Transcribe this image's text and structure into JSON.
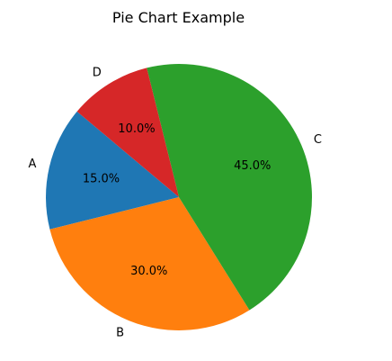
{
  "chart_data": {
    "type": "pie",
    "title": "Pie Chart Example",
    "labels": [
      "A",
      "B",
      "C",
      "D"
    ],
    "values": [
      15,
      30,
      45,
      10
    ],
    "percent_labels": [
      "15.0%",
      "30.0%",
      "45.0%",
      "10.0%"
    ],
    "colors": [
      "#1f77b4",
      "#ff7f0e",
      "#2ca02c",
      "#d62728"
    ],
    "start_angle_deg": 140,
    "direction": "counterclockwise"
  }
}
